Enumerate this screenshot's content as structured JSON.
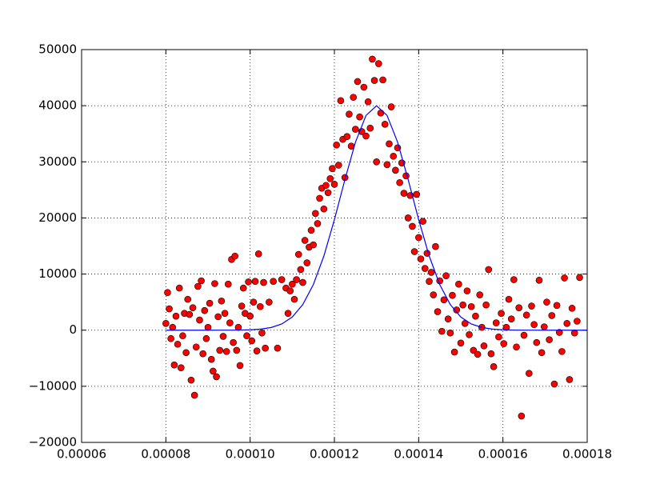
{
  "chart_data": {
    "type": "scatter",
    "xlim": [
      6e-05,
      0.00018
    ],
    "xticks": [
      {
        "value": 6e-05,
        "label": "0.00006"
      },
      {
        "value": 8e-05,
        "label": "0.00008"
      },
      {
        "value": 0.0001,
        "label": "0.00010"
      },
      {
        "value": 0.00012,
        "label": "0.00012"
      },
      {
        "value": 0.00014,
        "label": "0.00014"
      },
      {
        "value": 0.00016,
        "label": "0.00016"
      },
      {
        "value": 0.00018,
        "label": "0.00018"
      }
    ],
    "ylim": [
      -20000,
      50000
    ],
    "yticks": [
      {
        "value": -20000,
        "label": "−20000"
      },
      {
        "value": -10000,
        "label": "−10000"
      },
      0,
      10000,
      20000,
      30000,
      40000,
      50000
    ],
    "grid": true,
    "series": [
      {
        "type": "scatter",
        "color": "#ff0000",
        "x": [
          8e-05,
          8.04e-05,
          8.08e-05,
          8.12e-05,
          8.16e-05,
          8.2e-05,
          8.24e-05,
          8.28e-05,
          8.32e-05,
          8.36e-05,
          8.4e-05,
          8.44e-05,
          8.48e-05,
          8.52e-05,
          8.56e-05,
          8.6e-05,
          8.64e-05,
          8.68e-05,
          8.72e-05,
          8.76e-05,
          8.8e-05,
          8.84e-05,
          8.88e-05,
          8.92e-05,
          8.96e-05,
          9e-05,
          9.04e-05,
          9.08e-05,
          9.12e-05,
          9.16e-05,
          9.2e-05,
          9.24e-05,
          9.28e-05,
          9.32e-05,
          9.36e-05,
          9.4e-05,
          9.44e-05,
          9.48e-05,
          9.52e-05,
          9.56e-05,
          9.6e-05,
          9.64e-05,
          9.68e-05,
          9.72e-05,
          9.76e-05,
          9.8e-05,
          9.84e-05,
          9.88e-05,
          9.92e-05,
          9.96e-05,
          0.0001,
          0.0001004,
          0.0001008,
          0.0001012,
          0.0001016,
          0.000102,
          0.0001024,
          0.0001028,
          0.0001032,
          0.0001036,
          0.0001045,
          0.0001055,
          0.0001065,
          0.0001075,
          0.0001085,
          0.000109,
          0.0001095,
          0.00011,
          0.0001105,
          0.000111,
          0.0001115,
          0.000112,
          0.0001125,
          0.000113,
          0.0001135,
          0.000114,
          0.0001145,
          0.000115,
          0.0001155,
          0.000116,
          0.0001165,
          0.000117,
          0.0001175,
          0.000118,
          0.0001185,
          0.000119,
          0.0001195,
          0.00012,
          0.0001205,
          0.000121,
          0.0001215,
          0.000122,
          0.0001225,
          0.000123,
          0.0001235,
          0.000124,
          0.0001245,
          0.000125,
          0.0001255,
          0.000126,
          0.0001265,
          0.000127,
          0.0001275,
          0.000128,
          0.0001285,
          0.000129,
          0.0001295,
          0.00013,
          0.0001305,
          0.000131,
          0.0001315,
          0.000132,
          0.0001325,
          0.000133,
          0.0001335,
          0.000134,
          0.0001345,
          0.000135,
          0.0001355,
          0.000136,
          0.0001365,
          0.000137,
          0.0001375,
          0.000138,
          0.0001385,
          0.000139,
          0.0001395,
          0.00014,
          0.0001405,
          0.000141,
          0.0001415,
          0.000142,
          0.0001425,
          0.000143,
          0.0001435,
          0.000144,
          0.0001445,
          0.000145,
          0.0001455,
          0.000146,
          0.0001465,
          0.000147,
          0.0001475,
          0.000148,
          0.0001485,
          0.000149,
          0.0001495,
          0.00015,
          0.0001505,
          0.000151,
          0.0001515,
          0.000152,
          0.0001525,
          0.000153,
          0.0001535,
          0.000154,
          0.0001545,
          0.000155,
          0.0001555,
          0.000156,
          0.0001566,
          0.0001572,
          0.0001578,
          0.0001584,
          0.000159,
          0.0001596,
          0.0001602,
          0.0001608,
          0.0001614,
          0.000162,
          0.0001626,
          0.0001632,
          0.0001638,
          0.0001644,
          0.000165,
          0.0001656,
          0.0001662,
          0.0001668,
          0.0001674,
          0.000168,
          0.0001686,
          0.0001692,
          0.0001698,
          0.0001704,
          0.000171,
          0.0001716,
          0.0001722,
          0.0001728,
          0.0001734,
          0.000174,
          0.0001746,
          0.0001752,
          0.0001758,
          0.0001764,
          0.000177,
          0.0001776,
          0.0001782
        ],
        "values": [
          1200,
          6700,
          3800,
          -1500,
          500,
          -6200,
          2500,
          -2500,
          7500,
          -6700,
          -1000,
          3000,
          -4000,
          5500,
          2800,
          -8900,
          4000,
          -11600,
          -3000,
          7800,
          1800,
          8800,
          -4200,
          3500,
          -1500,
          500,
          4800,
          -5200,
          -7300,
          8300,
          -8300,
          2400,
          -3600,
          5200,
          -1100,
          3000,
          -3800,
          8200,
          1300,
          12600,
          -2200,
          13200,
          -3600,
          500,
          -6300,
          4300,
          7500,
          3000,
          -1000,
          8600,
          2500,
          -1900,
          5000,
          8700,
          -3700,
          13600,
          4200,
          -500,
          8500,
          -3200,
          5000,
          8700,
          -3200,
          9000,
          7500,
          3000,
          7000,
          8200,
          5500,
          9000,
          13500,
          10800,
          8500,
          16000,
          12000,
          14800,
          17800,
          15200,
          20800,
          19000,
          23500,
          25300,
          21600,
          25800,
          24500,
          27000,
          28800,
          26000,
          33000,
          29400,
          40900,
          34000,
          27200,
          34500,
          38500,
          32800,
          41500,
          35800,
          44300,
          38000,
          35400,
          43300,
          34600,
          40700,
          36000,
          48300,
          44500,
          30000,
          47500,
          38700,
          44600,
          36700,
          29500,
          33200,
          39800,
          31000,
          28500,
          32500,
          26300,
          29800,
          24400,
          27500,
          20000,
          24000,
          18500,
          14000,
          24200,
          16500,
          12700,
          19400,
          11000,
          13700,
          8700,
          10300,
          6300,
          14900,
          3300,
          8800,
          -200,
          5400,
          9700,
          2000,
          -500,
          6200,
          -3900,
          3600,
          8200,
          -2300,
          4500,
          1200,
          7000,
          -800,
          4200,
          -3600,
          2500,
          -4300,
          6300,
          500,
          -2800,
          4500,
          10800,
          -4200,
          -6500,
          1300,
          -1200,
          3000,
          -2400,
          500,
          5500,
          2000,
          9000,
          -3000,
          4000,
          -15300,
          -900,
          2700,
          -7700,
          4300,
          1000,
          -2200,
          8900,
          -4000,
          600,
          5000,
          -1700,
          2600,
          -9600,
          4400,
          -400,
          -3800,
          9300,
          1200,
          -8800,
          3900,
          -500,
          1600,
          9400
        ]
      },
      {
        "type": "line",
        "color": "#0000ff",
        "x": [
          8e-05,
          8.25e-05,
          8.5e-05,
          8.75e-05,
          9e-05,
          9.25e-05,
          9.5e-05,
          9.75e-05,
          0.0001,
          0.0001025,
          0.000105,
          0.0001075,
          0.00011,
          0.0001125,
          0.000115,
          0.0001175,
          0.00012,
          0.0001225,
          0.000125,
          0.0001275,
          0.00013,
          0.0001325,
          0.000135,
          0.0001375,
          0.00014,
          0.0001425,
          0.000145,
          0.0001475,
          0.00015,
          0.0001525,
          0.000155,
          0.0001575,
          0.00016,
          0.0001625,
          0.000165,
          0.0001675,
          0.00017,
          0.0001725,
          0.000175,
          0.0001775,
          0.00018
        ],
        "values": [
          0,
          0,
          0,
          0,
          0,
          2,
          7,
          22,
          68,
          188,
          477,
          1106,
          2349,
          4565,
          8120,
          13216,
          19692,
          26849,
          33505,
          38267,
          40000,
          38267,
          33505,
          26849,
          19692,
          13216,
          8120,
          4565,
          2349,
          1106,
          477,
          188,
          68,
          22,
          7,
          2,
          0,
          0,
          0,
          0,
          0
        ]
      }
    ]
  }
}
